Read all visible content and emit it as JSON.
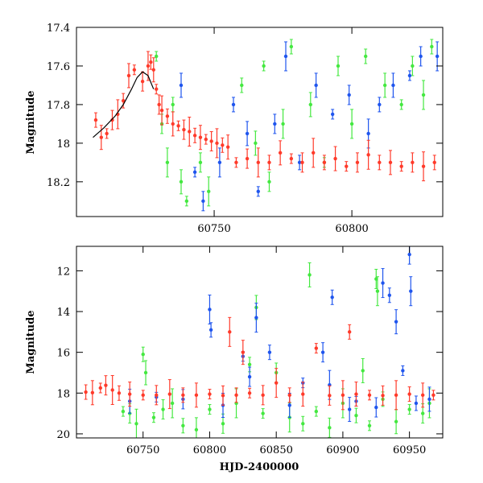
{
  "colors": {
    "red": "#ff3a2a",
    "green": "#44e840",
    "blue": "#1f55ee",
    "model": "#000000"
  },
  "chart_data": [
    {
      "id": "top",
      "type": "scatter",
      "title": "",
      "xlabel": "",
      "ylabel": "Magnitude",
      "xlim": [
        60700,
        60833
      ],
      "ylim": [
        18.38,
        17.4
      ],
      "xticks": [
        60750,
        60800
      ],
      "yticks": [
        17.4,
        17.6,
        17.8,
        18,
        18.2
      ],
      "series": [
        {
          "name": "green",
          "color": "#44e840",
          "points": [
            [
              60729,
              17.55
            ],
            [
              60731,
              17.9
            ],
            [
              60733,
              18.1
            ],
            [
              60735,
              17.8
            ],
            [
              60738,
              18.2
            ],
            [
              60740,
              18.3
            ],
            [
              60745,
              18.1
            ],
            [
              60748,
              18.25
            ],
            [
              60760,
              17.7
            ],
            [
              60765,
              18.0
            ],
            [
              60768,
              17.6
            ],
            [
              60770,
              18.2
            ],
            [
              60775,
              17.9
            ],
            [
              60778,
              17.5
            ],
            [
              60785,
              17.8
            ],
            [
              60790,
              18.1
            ],
            [
              60795,
              17.6
            ],
            [
              60800,
              17.9
            ],
            [
              60805,
              17.55
            ],
            [
              60812,
              17.7
            ],
            [
              60818,
              17.8
            ],
            [
              60822,
              17.6
            ],
            [
              60826,
              17.75
            ],
            [
              60829,
              17.5
            ]
          ]
        },
        {
          "name": "blue",
          "color": "#1f55ee",
          "points": [
            [
              60738,
              17.7
            ],
            [
              60743,
              18.15
            ],
            [
              60746,
              18.3
            ],
            [
              60752,
              18.1
            ],
            [
              60757,
              17.8
            ],
            [
              60762,
              17.95
            ],
            [
              60766,
              18.25
            ],
            [
              60772,
              17.9
            ],
            [
              60776,
              17.55
            ],
            [
              60781,
              18.1
            ],
            [
              60787,
              17.7
            ],
            [
              60793,
              17.85
            ],
            [
              60799,
              17.75
            ],
            [
              60806,
              17.95
            ],
            [
              60810,
              17.8
            ],
            [
              60815,
              17.7
            ],
            [
              60821,
              17.65
            ],
            [
              60825,
              17.55
            ],
            [
              60831,
              17.55
            ]
          ]
        },
        {
          "name": "red",
          "color": "#ff3a2a",
          "points": [
            [
              60707,
              17.88
            ],
            [
              60709,
              17.97
            ],
            [
              60711,
              17.95
            ],
            [
              60713,
              17.88
            ],
            [
              60715,
              17.85
            ],
            [
              60717,
              17.78
            ],
            [
              60719,
              17.65
            ],
            [
              60721,
              17.62
            ],
            [
              60724,
              17.68
            ],
            [
              60726,
              17.6
            ],
            [
              60727,
              17.58
            ],
            [
              60728,
              17.62
            ],
            [
              60729,
              17.72
            ],
            [
              60730,
              17.8
            ],
            [
              60731,
              17.83
            ],
            [
              60733,
              17.86
            ],
            [
              60735,
              17.9
            ],
            [
              60737,
              17.91
            ],
            [
              60739,
              17.93
            ],
            [
              60741,
              17.94
            ],
            [
              60743,
              17.96
            ],
            [
              60745,
              17.97
            ],
            [
              60747,
              17.98
            ],
            [
              60749,
              17.99
            ],
            [
              60751,
              18.0
            ],
            [
              60753,
              18.01
            ],
            [
              60755,
              18.02
            ],
            [
              60758,
              18.1
            ],
            [
              60762,
              18.08
            ],
            [
              60766,
              18.1
            ],
            [
              60770,
              18.1
            ],
            [
              60774,
              18.05
            ],
            [
              60778,
              18.08
            ],
            [
              60782,
              18.1
            ],
            [
              60786,
              18.05
            ],
            [
              60790,
              18.1
            ],
            [
              60794,
              18.08
            ],
            [
              60798,
              18.12
            ],
            [
              60802,
              18.1
            ],
            [
              60806,
              18.06
            ],
            [
              60810,
              18.1
            ],
            [
              60814,
              18.1
            ],
            [
              60818,
              18.12
            ],
            [
              60822,
              18.1
            ],
            [
              60826,
              18.12
            ],
            [
              60830,
              18.1
            ]
          ]
        }
      ],
      "model_curve": [
        [
          60706,
          17.97
        ],
        [
          60710,
          17.92
        ],
        [
          60714,
          17.86
        ],
        [
          60717,
          17.8
        ],
        [
          60720,
          17.72
        ],
        [
          60722,
          17.66
        ],
        [
          60724,
          17.63
        ],
        [
          60726,
          17.65
        ],
        [
          60728,
          17.72
        ]
      ]
    },
    {
      "id": "bottom",
      "type": "scatter",
      "title": "",
      "xlabel": "HJD-2400000",
      "ylabel": "Magnitude",
      "xlim": [
        60700,
        60975
      ],
      "ylim": [
        20.2,
        10.8
      ],
      "xticks": [
        60750,
        60800,
        60850,
        60900,
        60950
      ],
      "yticks": [
        12,
        14,
        16,
        18,
        20
      ],
      "series": [
        {
          "name": "green",
          "color": "#44e840",
          "points": [
            [
              60735,
              18.9
            ],
            [
              60740,
              19.0
            ],
            [
              60745,
              19.5
            ],
            [
              60750,
              16.1
            ],
            [
              60752,
              17.0
            ],
            [
              60758,
              19.2
            ],
            [
              60765,
              18.8
            ],
            [
              60772,
              18.5
            ],
            [
              60780,
              19.6
            ],
            [
              60790,
              19.8
            ],
            [
              60800,
              18.8
            ],
            [
              60810,
              19.5
            ],
            [
              60820,
              18.5
            ],
            [
              60830,
              16.6
            ],
            [
              60835,
              13.8
            ],
            [
              60840,
              19.0
            ],
            [
              60850,
              17.0
            ],
            [
              60860,
              19.2
            ],
            [
              60870,
              19.5
            ],
            [
              60875,
              12.2
            ],
            [
              60880,
              18.9
            ],
            [
              60890,
              19.7
            ],
            [
              60900,
              18.5
            ],
            [
              60910,
              19.1
            ],
            [
              60915,
              16.9
            ],
            [
              60920,
              19.6
            ],
            [
              60925,
              12.4
            ],
            [
              60926,
              13.0
            ],
            [
              60930,
              18.3
            ],
            [
              60940,
              19.4
            ],
            [
              60950,
              18.8
            ],
            [
              60960,
              19.0
            ],
            [
              60965,
              18.5
            ]
          ]
        },
        {
          "name": "blue",
          "color": "#1f55ee",
          "points": [
            [
              60740,
              18.4
            ],
            [
              60760,
              18.2
            ],
            [
              60780,
              18.3
            ],
            [
              60800,
              13.9
            ],
            [
              60801,
              14.9
            ],
            [
              60810,
              18.6
            ],
            [
              60825,
              16.2
            ],
            [
              60830,
              17.2
            ],
            [
              60835,
              14.3
            ],
            [
              60845,
              16.0
            ],
            [
              60860,
              18.6
            ],
            [
              60870,
              17.5
            ],
            [
              60885,
              16.0
            ],
            [
              60890,
              17.6
            ],
            [
              60892,
              13.3
            ],
            [
              60905,
              18.8
            ],
            [
              60910,
              18.4
            ],
            [
              60925,
              18.7
            ],
            [
              60930,
              12.6
            ],
            [
              60935,
              13.2
            ],
            [
              60940,
              14.5
            ],
            [
              60945,
              16.9
            ],
            [
              60950,
              11.2
            ],
            [
              60951,
              13.0
            ],
            [
              60955,
              18.5
            ],
            [
              60965,
              18.3
            ]
          ]
        },
        {
          "name": "red",
          "color": "#ff3a2a",
          "points": [
            [
              60707,
              17.95
            ],
            [
              60712,
              17.98
            ],
            [
              60718,
              17.75
            ],
            [
              60722,
              17.62
            ],
            [
              60727,
              17.85
            ],
            [
              60732,
              18.0
            ],
            [
              60740,
              18.05
            ],
            [
              60750,
              18.1
            ],
            [
              60760,
              18.1
            ],
            [
              60770,
              18.05
            ],
            [
              60780,
              18.1
            ],
            [
              60790,
              18.1
            ],
            [
              60800,
              18.05
            ],
            [
              60810,
              18.12
            ],
            [
              60815,
              15.0
            ],
            [
              60820,
              18.1
            ],
            [
              60825,
              16.0
            ],
            [
              60830,
              18.0
            ],
            [
              60840,
              18.1
            ],
            [
              60850,
              17.5
            ],
            [
              60860,
              18.1
            ],
            [
              60870,
              18.05
            ],
            [
              60880,
              15.8
            ],
            [
              60890,
              18.12
            ],
            [
              60900,
              18.1
            ],
            [
              60905,
              15.0
            ],
            [
              60910,
              18.05
            ],
            [
              60920,
              18.1
            ],
            [
              60930,
              18.12
            ],
            [
              60940,
              18.1
            ],
            [
              60950,
              18.05
            ],
            [
              60960,
              18.1
            ],
            [
              60968,
              18.1
            ]
          ]
        }
      ]
    }
  ]
}
